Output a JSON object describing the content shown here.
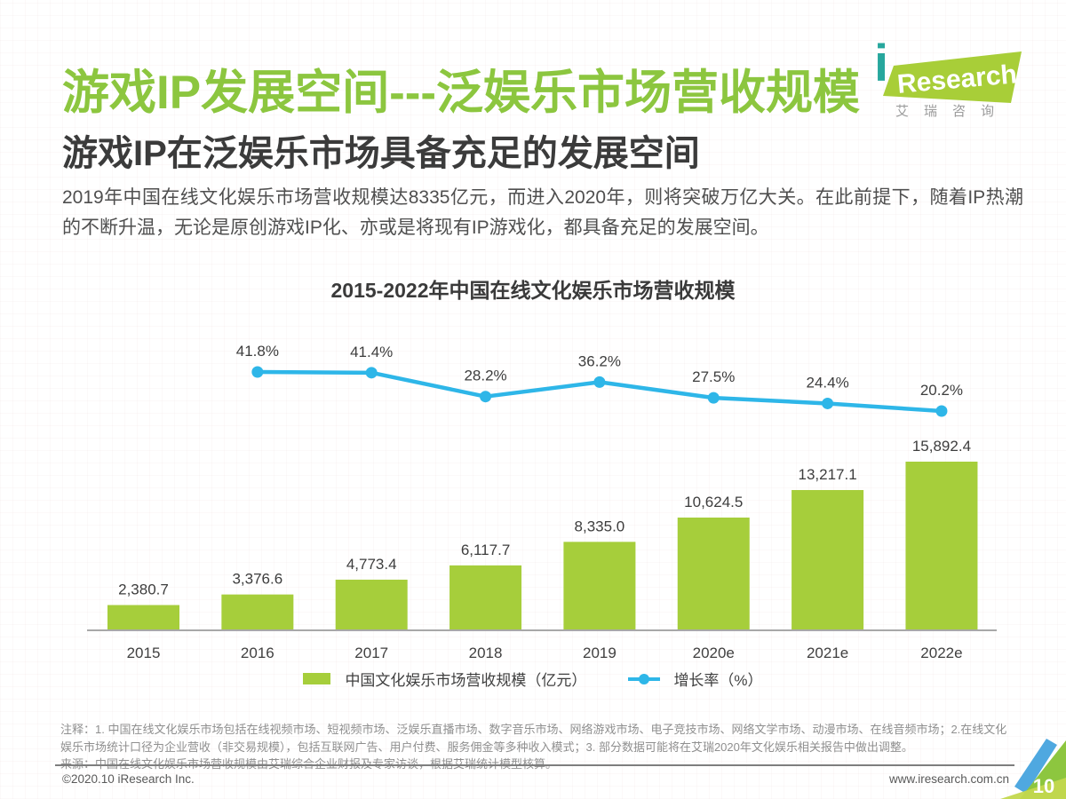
{
  "page": {
    "title": "游戏IP发展空间---泛娱乐市场营收规模",
    "subtitle": "游戏IP在泛娱乐市场具备充足的发展空间",
    "paragraph": "2019年中国在线文化娱乐市场营收规模达8335亿元，而进入2020年，则将突破万亿大关。在此前提下，随着IP热潮的不断升温，无论是原创游戏IP化、亦或是将现有IP游戏化，都具备充足的发展空间。"
  },
  "logo": {
    "i": "i",
    "research": "Research",
    "chinese": "艾瑞咨询"
  },
  "chart_data": {
    "type": "bar+line",
    "title": "2015-2022年中国在线文化娱乐市场营收规模",
    "categories": [
      "2015",
      "2016",
      "2017",
      "2018",
      "2019",
      "2020e",
      "2021e",
      "2022e"
    ],
    "series": [
      {
        "name": "中国文化娱乐市场营收规模（亿元）",
        "type": "bar",
        "color": "#a6ce3b",
        "values": [
          2380.7,
          3376.6,
          4773.4,
          6117.7,
          8335.0,
          10624.5,
          13217.1,
          15892.4
        ],
        "labels": [
          "2,380.7",
          "3,376.6",
          "4,773.4",
          "6,117.7",
          "8,335.0",
          "10,624.5",
          "13,217.1",
          "15,892.4"
        ]
      },
      {
        "name": "增长率（%）",
        "type": "line",
        "color": "#2eb6e8",
        "values": [
          null,
          41.8,
          41.4,
          28.2,
          36.2,
          27.5,
          24.4,
          20.2
        ],
        "labels": [
          "41.8%",
          "41.4%",
          "28.2%",
          "36.2%",
          "27.5%",
          "24.4%",
          "20.2%"
        ]
      }
    ],
    "legend": [
      "中国文化娱乐市场营收规模（亿元）",
      "增长率（%）"
    ],
    "ylim_bar": [
      0,
      16000
    ],
    "ylim_line_pct": [
      0,
      45
    ],
    "grid": false,
    "legend_position": "bottom"
  },
  "notes": {
    "annotation": "注释：1. 中国在线文化娱乐市场包括在线视频市场、短视频市场、泛娱乐直播市场、数字音乐市场、网络游戏市场、电子竞技市场、网络文学市场、动漫市场、在线音频市场；2.在线文化娱乐市场统计口径为企业营收（非交易规模），包括互联网广告、用户付费、服务佣金等多种收入模式；3. 部分数据可能将在艾瑞2020年文化娱乐相关报告中做出调整。",
    "source": "来源：中国在线文化娱乐市场营收规模由艾瑞综合企业财报及专家访谈，根据艾瑞统计模型核算。"
  },
  "footer": {
    "copyright": "©2020.10 iResearch Inc.",
    "website": "www.iresearch.com.cn",
    "page_number": "10"
  },
  "colors": {
    "title_green": "#8cc63f",
    "bar_green": "#a6ce3b",
    "line_cyan": "#2eb6e8",
    "logo_i_teal": "#27a79d",
    "corner_blue": "#4fa8e0",
    "corner_green": "#8dc63f",
    "corner_light_green": "#c3d84e"
  }
}
